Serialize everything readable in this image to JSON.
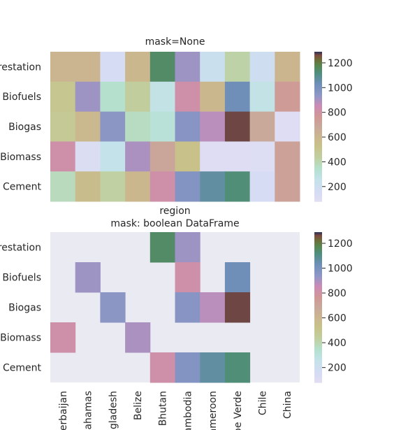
{
  "figure": {
    "colorscale": {
      "name": "cubehelix_r-like",
      "stops": [
        [
          0,
          "#e2ddf3"
        ],
        [
          0.07,
          "#d3dcf4"
        ],
        [
          0.15,
          "#c4e2e9"
        ],
        [
          0.22,
          "#b4e1cf"
        ],
        [
          0.29,
          "#c0d0a2"
        ],
        [
          0.37,
          "#c8c28a"
        ],
        [
          0.44,
          "#cbb58f"
        ],
        [
          0.5,
          "#c9a89a"
        ],
        [
          0.57,
          "#d09796"
        ],
        [
          0.64,
          "#cc8bb6"
        ],
        [
          0.71,
          "#8f97c7"
        ],
        [
          0.79,
          "#6d8fb8"
        ],
        [
          0.86,
          "#4f8f7e"
        ],
        [
          0.91,
          "#58874e"
        ],
        [
          0.95,
          "#6e6b37"
        ],
        [
          0.98,
          "#7c4a3f"
        ],
        [
          1.0,
          "#2c3356"
        ]
      ]
    }
  },
  "chart_data": [
    {
      "type": "heatmap",
      "title": "mask=None",
      "xlabel": "",
      "ylabel": "",
      "rows": [
        "Afforestation",
        "Biofuels",
        "Biogas",
        "Biomass",
        "Cement"
      ],
      "columns": [
        "Azerbaijan",
        "Bahamas",
        "Bangladesh",
        "Belize",
        "Bhutan",
        "Cambodia",
        "Cameroon",
        "Cape Verde",
        "Chile",
        "China"
      ],
      "values": [
        [
          620,
          620,
          150,
          600,
          1150,
          920,
          220,
          420,
          200,
          610
        ],
        [
          500,
          920,
          350,
          450,
          270,
          820,
          600,
          1030,
          270,
          750
        ],
        [
          480,
          590,
          950,
          370,
          320,
          960,
          880,
          1270,
          680,
          100
        ],
        [
          820,
          120,
          260,
          900,
          700,
          530,
          100,
          100,
          110,
          720
        ],
        [
          380,
          570,
          430,
          600,
          820,
          970,
          1070,
          1130,
          150,
          720
        ]
      ],
      "cmap": "cubehelix_r",
      "colorbar_ticks": [
        200,
        400,
        600,
        800,
        1000,
        1200
      ],
      "vmin": 80,
      "vmax": 1290
    },
    {
      "type": "heatmap",
      "title": "region\nmask: boolean DataFrame",
      "xlabel": "",
      "ylabel": "",
      "rows": [
        "Afforestation",
        "Biofuels",
        "Biogas",
        "Biomass",
        "Cement"
      ],
      "columns": [
        "Azerbaijan",
        "Bahamas",
        "Bangladesh",
        "Belize",
        "Bhutan",
        "Cambodia",
        "Cameroon",
        "Cape Verde",
        "Chile",
        "China"
      ],
      "values": [
        [
          null,
          null,
          null,
          null,
          1150,
          920,
          null,
          null,
          null,
          null
        ],
        [
          null,
          920,
          null,
          null,
          null,
          820,
          null,
          1030,
          null,
          null
        ],
        [
          null,
          null,
          950,
          null,
          null,
          960,
          880,
          1270,
          null,
          null
        ],
        [
          820,
          null,
          null,
          900,
          null,
          null,
          null,
          null,
          null,
          null
        ],
        [
          null,
          null,
          null,
          null,
          820,
          970,
          1070,
          1130,
          null,
          null
        ]
      ],
      "cmap": "cubehelix_r",
      "colorbar_ticks": [
        200,
        400,
        600,
        800,
        1000,
        1200
      ],
      "vmin": 80,
      "vmax": 1290,
      "masked_color": "#eaeaf2"
    }
  ]
}
